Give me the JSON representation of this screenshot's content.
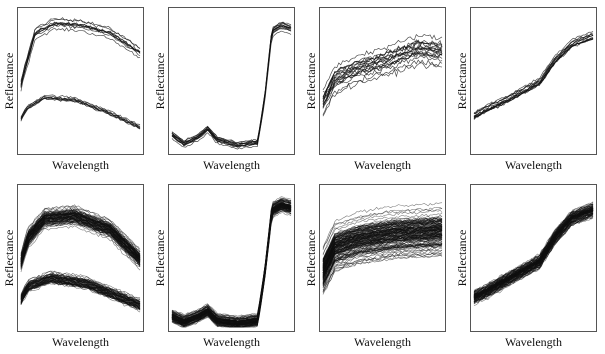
{
  "figure": {
    "grid": "2x4",
    "background": "#ffffff",
    "line_color": "#111111"
  },
  "chart_data": [
    {
      "type": "line",
      "panel": "top-1",
      "xlabel": "Wavelength",
      "ylabel": "Reflectance",
      "x": [
        0,
        1
      ],
      "ylim": [
        0,
        1
      ],
      "groups": [
        {
          "count": 10,
          "shape": [
            [
              0.0,
              0.48
            ],
            [
              0.04,
              0.62
            ],
            [
              0.12,
              0.86
            ],
            [
              0.28,
              0.93
            ],
            [
              0.5,
              0.92
            ],
            [
              0.75,
              0.86
            ],
            [
              1.0,
              0.72
            ]
          ],
          "spread": 0.07,
          "noise": 0.02
        },
        {
          "count": 8,
          "shape": [
            [
              0.0,
              0.22
            ],
            [
              0.05,
              0.3
            ],
            [
              0.2,
              0.38
            ],
            [
              0.45,
              0.36
            ],
            [
              0.7,
              0.28
            ],
            [
              1.0,
              0.16
            ]
          ],
          "spread": 0.05,
          "noise": 0.015
        }
      ]
    },
    {
      "type": "line",
      "panel": "top-2",
      "xlabel": "Wavelength",
      "ylabel": "Reflectance",
      "x": [
        0,
        1
      ],
      "ylim": [
        0,
        1
      ],
      "groups": [
        {
          "count": 14,
          "shape": [
            [
              0.0,
              0.12
            ],
            [
              0.1,
              0.05
            ],
            [
              0.22,
              0.1
            ],
            [
              0.3,
              0.16
            ],
            [
              0.38,
              0.08
            ],
            [
              0.55,
              0.04
            ],
            [
              0.72,
              0.06
            ],
            [
              0.78,
              0.4
            ],
            [
              0.84,
              0.88
            ],
            [
              0.92,
              0.92
            ],
            [
              1.0,
              0.9
            ]
          ],
          "spread": 0.05,
          "noise": 0.012
        }
      ]
    },
    {
      "type": "line",
      "panel": "top-3",
      "xlabel": "Wavelength",
      "ylabel": "Reflectance",
      "x": [
        0,
        1
      ],
      "ylim": [
        0,
        1
      ],
      "groups": [
        {
          "count": 20,
          "shape": [
            [
              0.0,
              0.35
            ],
            [
              0.1,
              0.52
            ],
            [
              0.3,
              0.6
            ],
            [
              0.55,
              0.66
            ],
            [
              0.8,
              0.74
            ],
            [
              1.0,
              0.72
            ]
          ],
          "spread": 0.16,
          "noise": 0.035
        }
      ]
    },
    {
      "type": "line",
      "panel": "top-4",
      "xlabel": "Wavelength",
      "ylabel": "Reflectance",
      "x": [
        0,
        1
      ],
      "ylim": [
        0,
        1
      ],
      "groups": [
        {
          "count": 14,
          "shape": [
            [
              0.0,
              0.25
            ],
            [
              0.1,
              0.3
            ],
            [
              0.3,
              0.38
            ],
            [
              0.55,
              0.5
            ],
            [
              0.68,
              0.66
            ],
            [
              0.82,
              0.78
            ],
            [
              1.0,
              0.84
            ]
          ],
          "spread": 0.06,
          "noise": 0.018
        }
      ]
    },
    {
      "type": "line",
      "panel": "bottom-1",
      "xlabel": "Wavelength",
      "ylabel": "Reflectance",
      "x": [
        0,
        1
      ],
      "ylim": [
        0,
        1
      ],
      "groups": [
        {
          "count": 90,
          "shape": [
            [
              0.0,
              0.48
            ],
            [
              0.06,
              0.66
            ],
            [
              0.2,
              0.8
            ],
            [
              0.45,
              0.82
            ],
            [
              0.75,
              0.72
            ],
            [
              1.0,
              0.5
            ]
          ],
          "spread": 0.09,
          "noise": 0.02
        },
        {
          "count": 60,
          "shape": [
            [
              0.0,
              0.2
            ],
            [
              0.06,
              0.3
            ],
            [
              0.25,
              0.36
            ],
            [
              0.55,
              0.32
            ],
            [
              1.0,
              0.16
            ]
          ],
          "spread": 0.09,
          "noise": 0.02
        }
      ]
    },
    {
      "type": "line",
      "panel": "bottom-2",
      "xlabel": "Wavelength",
      "ylabel": "Reflectance",
      "x": [
        0,
        1
      ],
      "ylim": [
        0,
        1
      ],
      "groups": [
        {
          "count": 120,
          "shape": [
            [
              0.0,
              0.08
            ],
            [
              0.1,
              0.04
            ],
            [
              0.22,
              0.08
            ],
            [
              0.3,
              0.12
            ],
            [
              0.38,
              0.05
            ],
            [
              0.55,
              0.03
            ],
            [
              0.72,
              0.05
            ],
            [
              0.78,
              0.4
            ],
            [
              0.84,
              0.86
            ],
            [
              0.92,
              0.9
            ],
            [
              1.0,
              0.88
            ]
          ],
          "spread": 0.07,
          "noise": 0.012
        }
      ]
    },
    {
      "type": "line",
      "panel": "bottom-3",
      "xlabel": "Wavelength",
      "ylabel": "Reflectance",
      "x": [
        0,
        1
      ],
      "ylim": [
        0,
        1
      ],
      "groups": [
        {
          "count": 150,
          "shape": [
            [
              0.0,
              0.4
            ],
            [
              0.1,
              0.58
            ],
            [
              0.3,
              0.64
            ],
            [
              0.6,
              0.68
            ],
            [
              1.0,
              0.7
            ]
          ],
          "spread": 0.22,
          "noise": 0.02
        }
      ]
    },
    {
      "type": "line",
      "panel": "bottom-4",
      "xlabel": "Wavelength",
      "ylabel": "Reflectance",
      "x": [
        0,
        1
      ],
      "ylim": [
        0,
        1
      ],
      "groups": [
        {
          "count": 110,
          "shape": [
            [
              0.0,
              0.22
            ],
            [
              0.1,
              0.26
            ],
            [
              0.3,
              0.36
            ],
            [
              0.55,
              0.48
            ],
            [
              0.68,
              0.66
            ],
            [
              0.82,
              0.8
            ],
            [
              1.0,
              0.86
            ]
          ],
          "spread": 0.07,
          "noise": 0.018
        }
      ]
    }
  ]
}
